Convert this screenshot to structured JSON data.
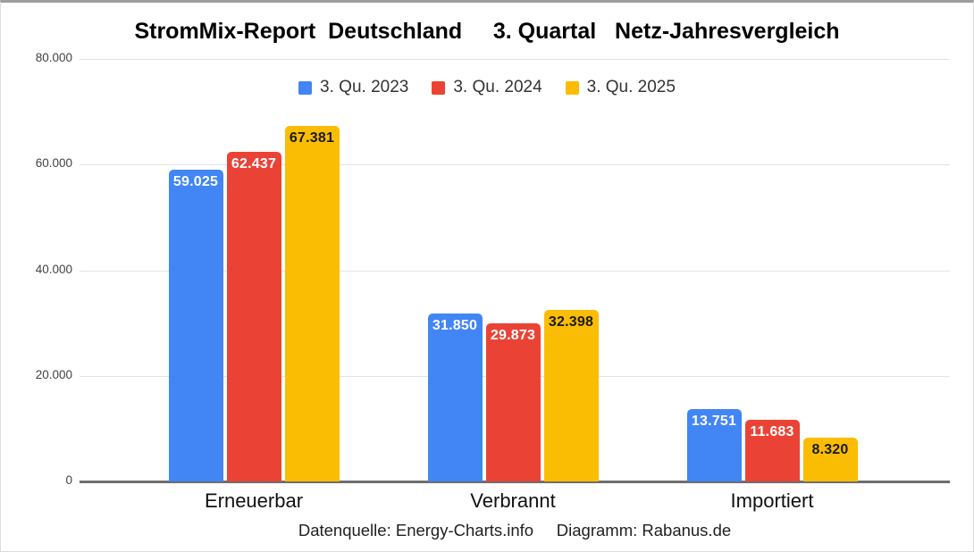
{
  "title": "StromMix-Report  Deutschland     3. Quartal   Netz-Jahresvergleich",
  "footer": "Datenquelle: Energy-Charts.info     Diagramm: Rabanus.de",
  "chart_data": {
    "type": "bar",
    "title": "StromMix-Report Deutschland 3. Quartal Netz-Jahresvergleich",
    "categories": [
      "Erneuerbar",
      "Verbrannt",
      "Importiert"
    ],
    "series": [
      {
        "name": "3. Qu. 2023",
        "color": "#4285F4",
        "label_color": "#ffffff",
        "values": [
          59025,
          31850,
          13751
        ],
        "value_labels": [
          "59.025",
          "31.850",
          "13.751"
        ]
      },
      {
        "name": "3. Qu. 2024",
        "color": "#EA4335",
        "label_color": "#ffffff",
        "values": [
          62437,
          29873,
          11683
        ],
        "value_labels": [
          "62.437",
          "29.873",
          "11.683"
        ]
      },
      {
        "name": "3. Qu. 2025",
        "color": "#FBBC04",
        "label_color": "#1a1a1a",
        "values": [
          67381,
          32398,
          8320
        ],
        "value_labels": [
          "67.381",
          "32.398",
          "8.320"
        ]
      }
    ],
    "xlabel": "",
    "ylabel": "",
    "ylim": [
      0,
      80000
    ],
    "yticks": [
      {
        "value": 0,
        "label": "0"
      },
      {
        "value": 20000,
        "label": "20.000"
      },
      {
        "value": 40000,
        "label": "40.000"
      },
      {
        "value": 60000,
        "label": "60.000"
      },
      {
        "value": 80000,
        "label": "80.000"
      }
    ],
    "grid": true,
    "legend_position": "top"
  }
}
